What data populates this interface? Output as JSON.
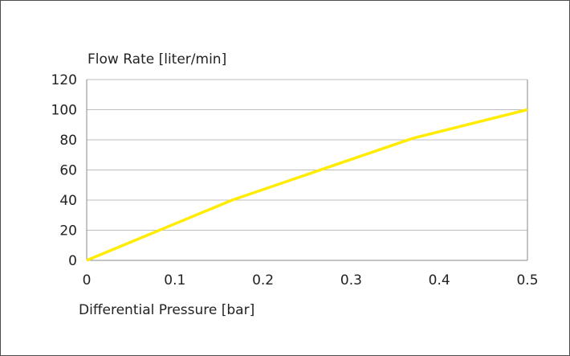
{
  "chart_data": {
    "type": "line",
    "title": "",
    "ylabel": "Flow Rate [liter/min]",
    "xlabel": "Differential Pressure [bar]",
    "xlim": [
      0,
      0.5
    ],
    "ylim": [
      0,
      120
    ],
    "x_ticks": [
      "0",
      "0.1",
      "0.2",
      "0.3",
      "0.4",
      "0.5"
    ],
    "y_ticks": [
      "0",
      "20",
      "40",
      "60",
      "80",
      "100",
      "120"
    ],
    "grid": "horizontal",
    "legend": "none",
    "series": [
      {
        "color": "#ffec00",
        "x": [
          0,
          0.165,
          0.37,
          0.5
        ],
        "y": [
          0,
          40,
          81,
          100
        ]
      }
    ]
  }
}
